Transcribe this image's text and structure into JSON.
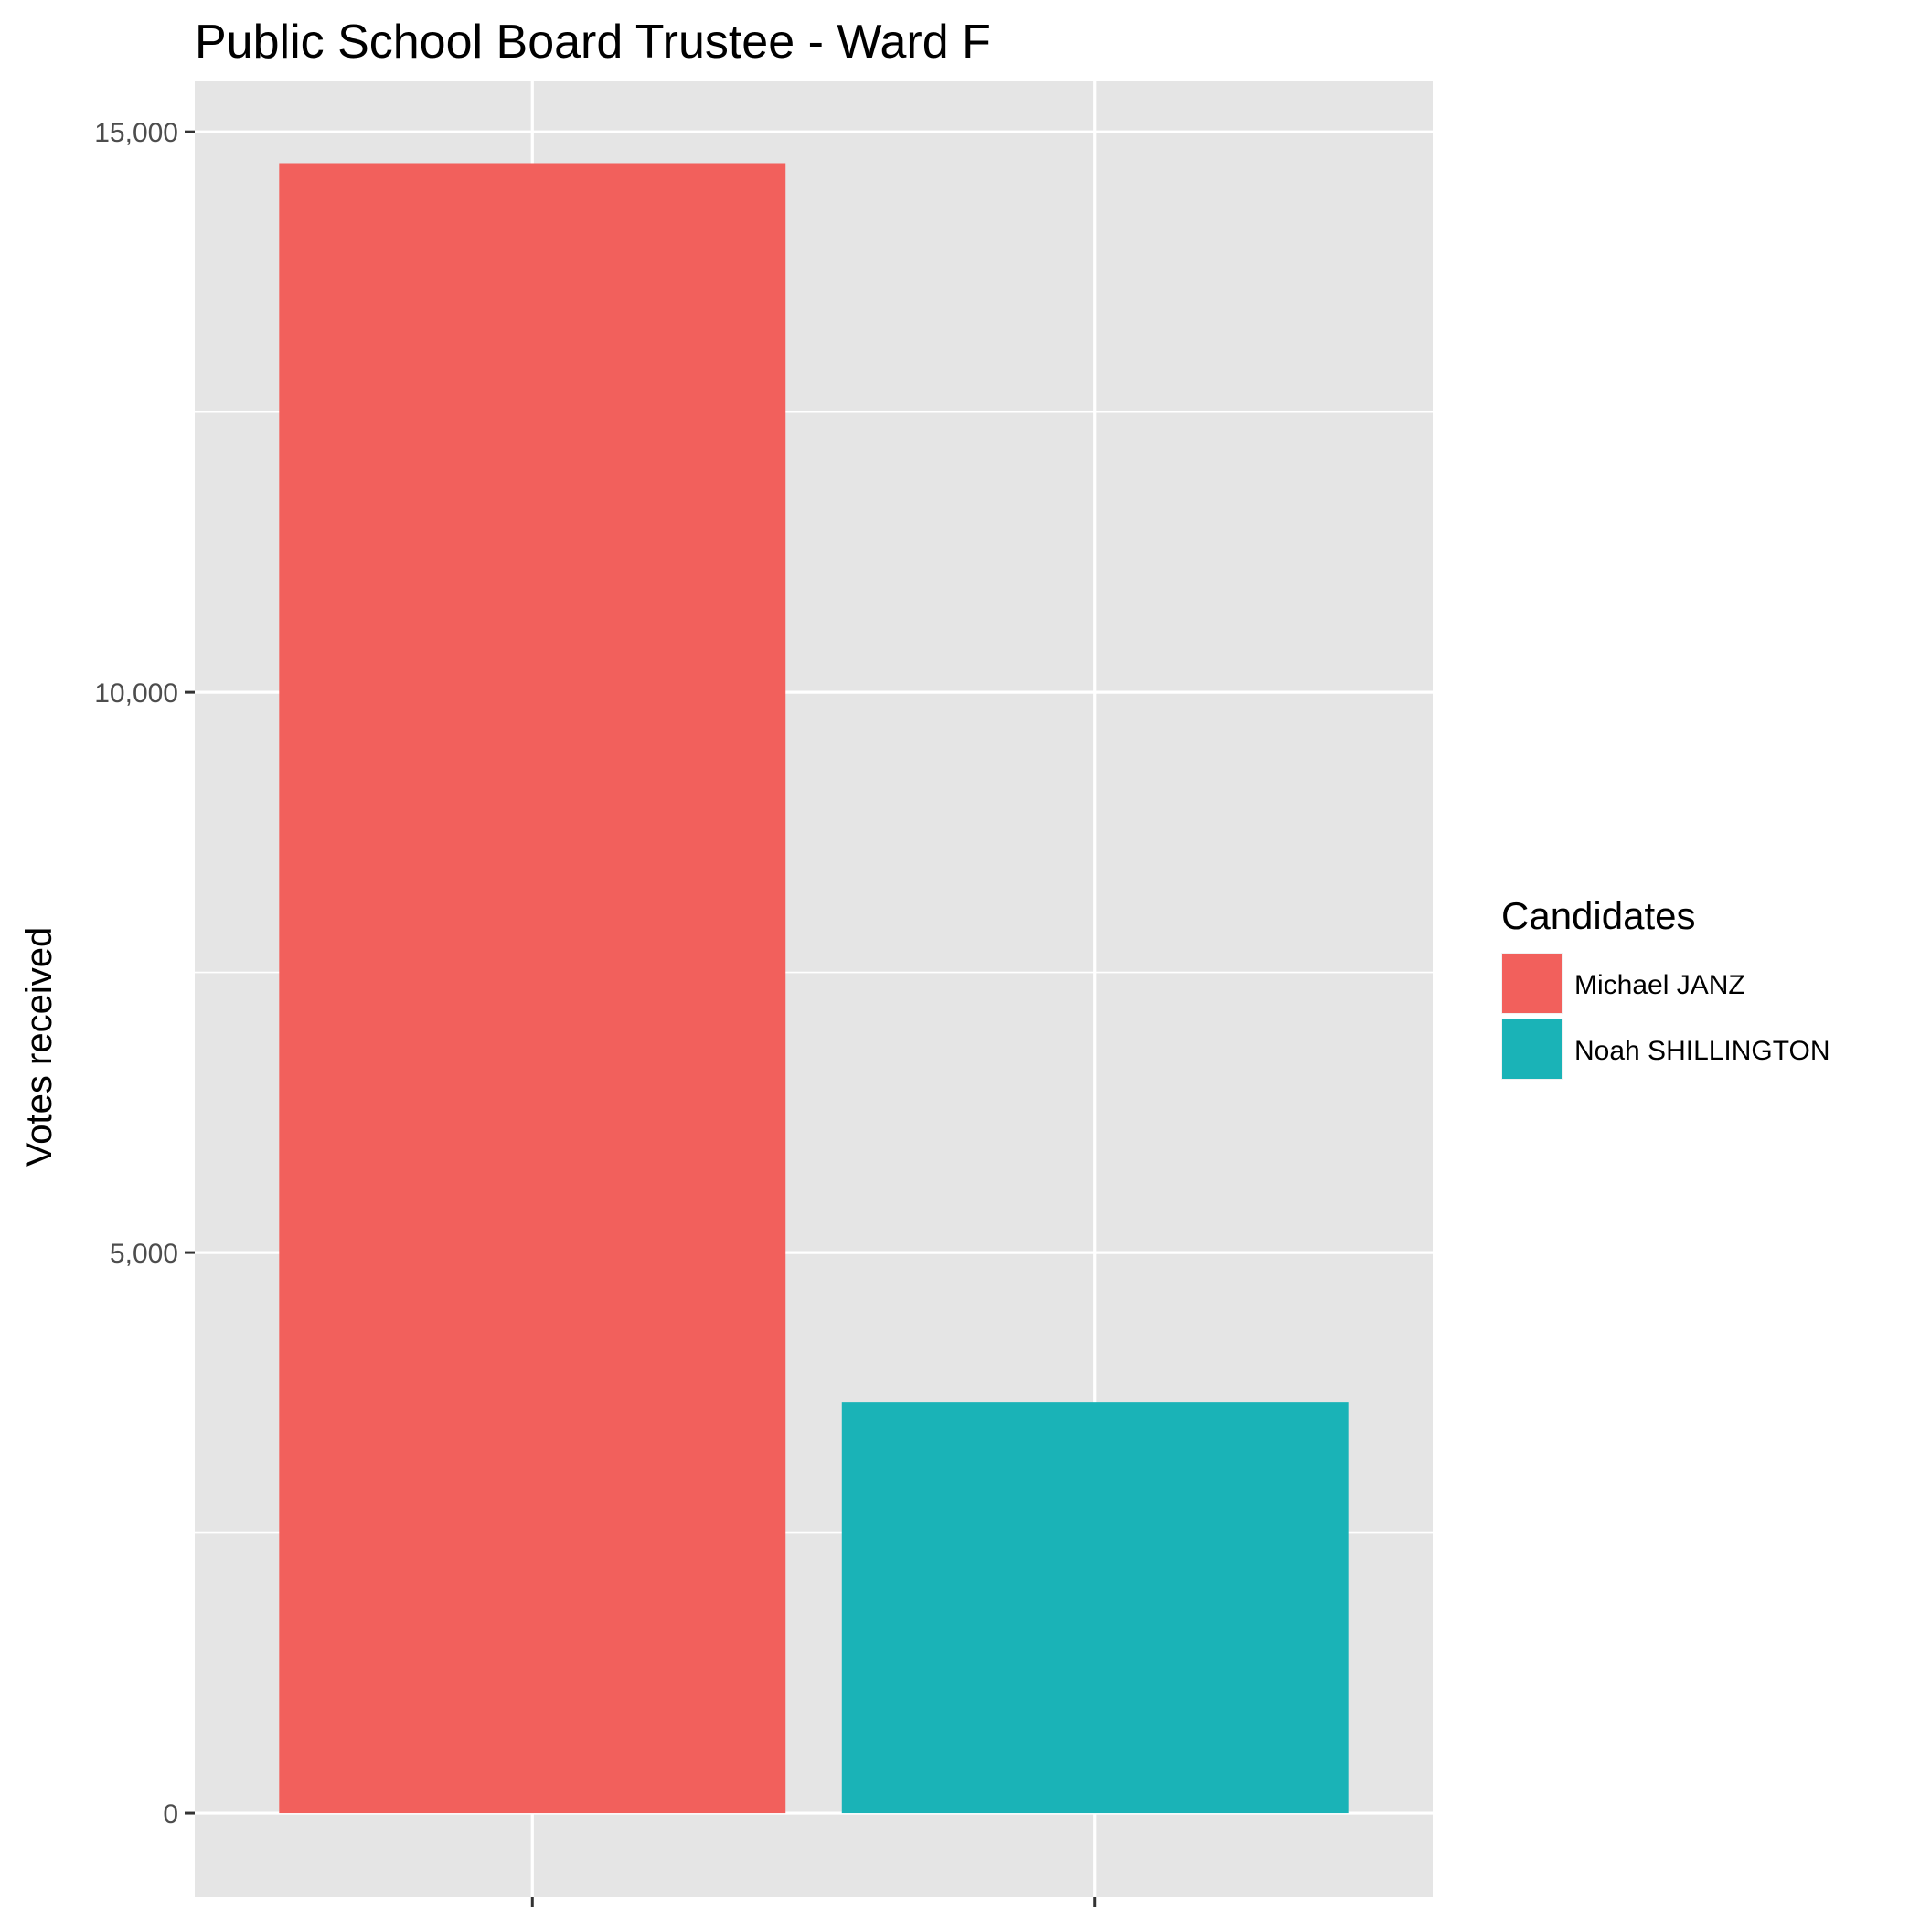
{
  "chart_data": {
    "type": "bar",
    "title": "Public School Board Trustee  - Ward F",
    "xlabel": "",
    "ylabel": "Votes received",
    "categories": [
      "Michael JANZ",
      "Noah SHILLINGTON"
    ],
    "values": [
      14720,
      3670
    ],
    "ylim": [
      -750,
      15450
    ],
    "yticks": [
      0,
      5000,
      10000,
      15000
    ],
    "ytick_labels": [
      "0",
      "5,000",
      "10,000",
      "15,000"
    ],
    "grid": true,
    "legend": {
      "title": "Candidates",
      "position": "right",
      "entries": [
        "Michael JANZ",
        "Noah SHILLINGTON"
      ]
    },
    "colors": {
      "Michael JANZ": "#F2605C",
      "Noah SHILLINGTON": "#1AB3B7",
      "panel_background": "#E5E5E5",
      "grid": "#FFFFFF"
    }
  }
}
